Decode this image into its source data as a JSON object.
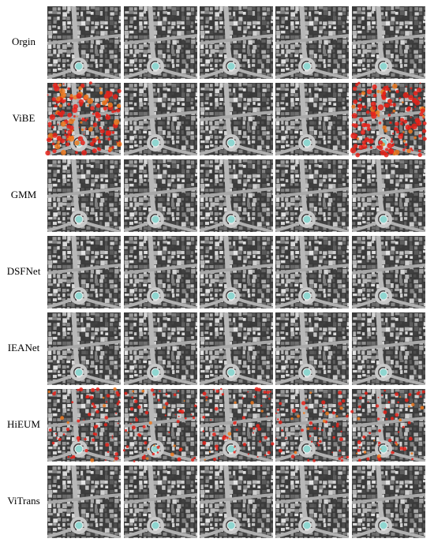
{
  "row_labels": [
    "Orgin",
    "ViBE",
    "GMM",
    "DSFNet",
    "IEANet",
    "HiEUM",
    "ViTrans"
  ]
}
